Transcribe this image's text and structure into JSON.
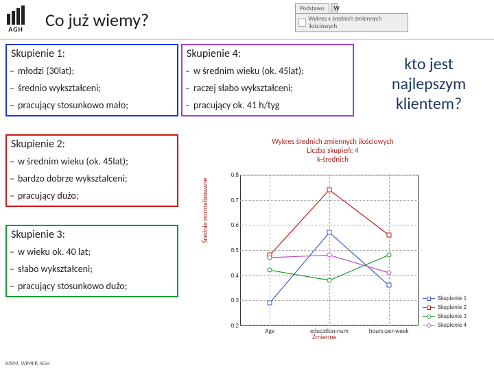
{
  "header": {
    "logo_text": "AGH",
    "title": "Co już wiemy?"
  },
  "toolbar_mock": {
    "tab": "Podstawo",
    "button": "Wykres x średnich zmiennych ilościowych"
  },
  "clusters": [
    {
      "title": "Skupienie 1:",
      "border_color": "#1a36d6",
      "items": [
        "młodzi (30lat);",
        "średnio wykształceni;",
        "pracujący stosunkowo mało;"
      ]
    },
    {
      "title": "Skupienie 2:",
      "border_color": "#c81818",
      "items": [
        "w średnim wieku (ok. 45lat);",
        "bardzo dobrze wykształceni;",
        "pracujący dużo;"
      ]
    },
    {
      "title": "Skupienie 3:",
      "border_color": "#169a2e",
      "items": [
        "w wieku ok. 40 lat;",
        "słabo wykształceni;",
        "pracujący stosunkowo dużo;"
      ]
    },
    {
      "title": "Skupienie 4:",
      "border_color": "#9d3fcf",
      "items": [
        "w średnim wieku (ok. 45lat);",
        "raczej słabo wykształceni;",
        "pracujący ok. 41 h/tyg"
      ]
    }
  ],
  "question": "kto jest najlepszym klientem?",
  "chart": {
    "type": "line",
    "title_line1": "Wykres średnich zmiennych ilościowych",
    "title_line2": "Liczba skupień: 4",
    "title_line3": "k-średnich",
    "xlabel": "Zmienne",
    "ylabel": "Średnie normalizowane",
    "title_color": "#b02020",
    "label_color": "#b02020",
    "background_color": "#ffffff",
    "grid_color": "#999999",
    "ylim": [
      0.2,
      0.8
    ],
    "yticks": [
      0.2,
      0.3,
      0.4,
      0.5,
      0.6,
      0.7,
      0.8
    ],
    "xticks": [
      "Age",
      "education-num",
      "hours-per-week"
    ],
    "series": [
      {
        "name": "Skupienie 1",
        "color": "#3b5bd6",
        "marker": "square",
        "values": [
          0.29,
          0.57,
          0.36
        ]
      },
      {
        "name": "Skupienie 2",
        "color": "#c81818",
        "marker": "square",
        "values": [
          0.48,
          0.74,
          0.56
        ]
      },
      {
        "name": "Skupienie 3",
        "color": "#169a2e",
        "marker": "circle",
        "values": [
          0.42,
          0.38,
          0.48
        ]
      },
      {
        "name": "Skupienie 4",
        "color": "#b94fc9",
        "marker": "circle",
        "values": [
          0.47,
          0.48,
          0.41
        ]
      }
    ],
    "label_fontsize": 10,
    "title_fontsize": 11,
    "tick_fontsize": 9
  },
  "footer": "KISIM, WIMIIP, AGH"
}
